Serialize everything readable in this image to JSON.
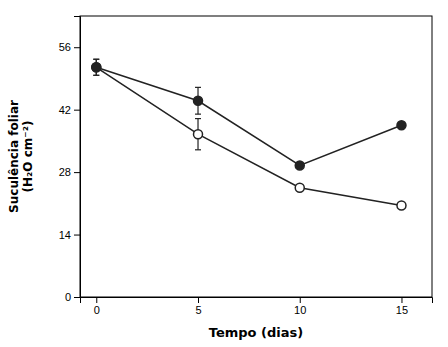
{
  "chart_data": {
    "type": "line",
    "xlabel": "Tempo (dias)",
    "ylabel": "Suculência foliar\n(H₂O cm⁻²)",
    "x": [
      0,
      5,
      10,
      15
    ],
    "series": [
      {
        "color": "#222222",
        "marker": "circle-open",
        "values": [
          51.5,
          36.5,
          24.5,
          20.5
        ],
        "yerr": [
          1.8,
          3.5,
          0.5,
          0.5
        ]
      },
      {
        "color": "#222222",
        "marker": "circle",
        "values": [
          51.5,
          44.0,
          29.5,
          38.5
        ],
        "yerr": [
          1.8,
          3.0,
          0.5,
          0.5
        ]
      }
    ],
    "xlim": [
      -0.8,
      16.5
    ],
    "ylim": [
      0,
      63
    ],
    "xticks": [
      0,
      5,
      10,
      15
    ],
    "yticks": [
      0,
      14,
      28,
      42,
      56
    ],
    "grid": false
  }
}
